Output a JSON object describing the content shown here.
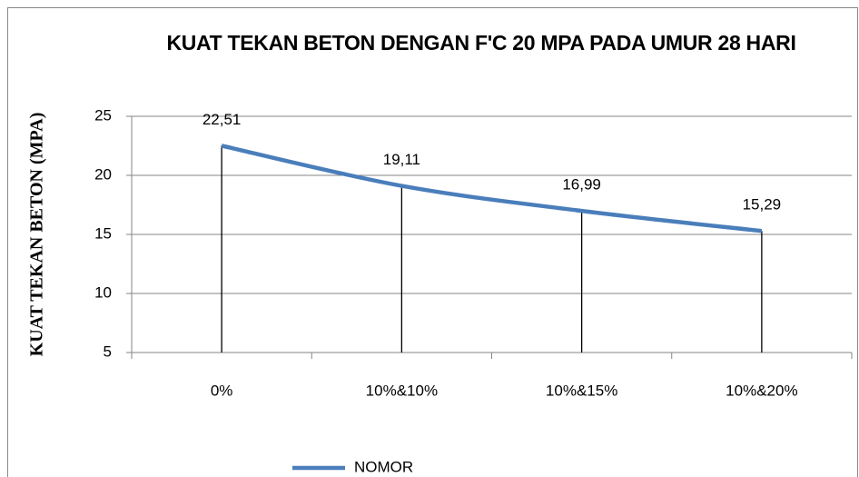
{
  "chart_data": {
    "type": "line",
    "title": "KUAT TEKAN BETON DENGAN F'C 20 MPA PADA UMUR 28 HARI",
    "y_label": "KUAT TEKAN BETON (MPA)",
    "categories": [
      "0%",
      "10%&10%",
      "10%&15%",
      "10%&20%"
    ],
    "series": [
      {
        "name": "NOMOR",
        "color": "#4a7ebb",
        "values": [
          22.51,
          19.11,
          16.99,
          15.29
        ],
        "value_labels": [
          "22,51",
          "19,11",
          "16,99",
          "15,29"
        ]
      }
    ],
    "ylim": [
      5,
      25
    ],
    "yticks": [
      5,
      10,
      15,
      20,
      25
    ],
    "grid": true,
    "drop_lines": true,
    "smooth": true,
    "legend": "bottom"
  }
}
